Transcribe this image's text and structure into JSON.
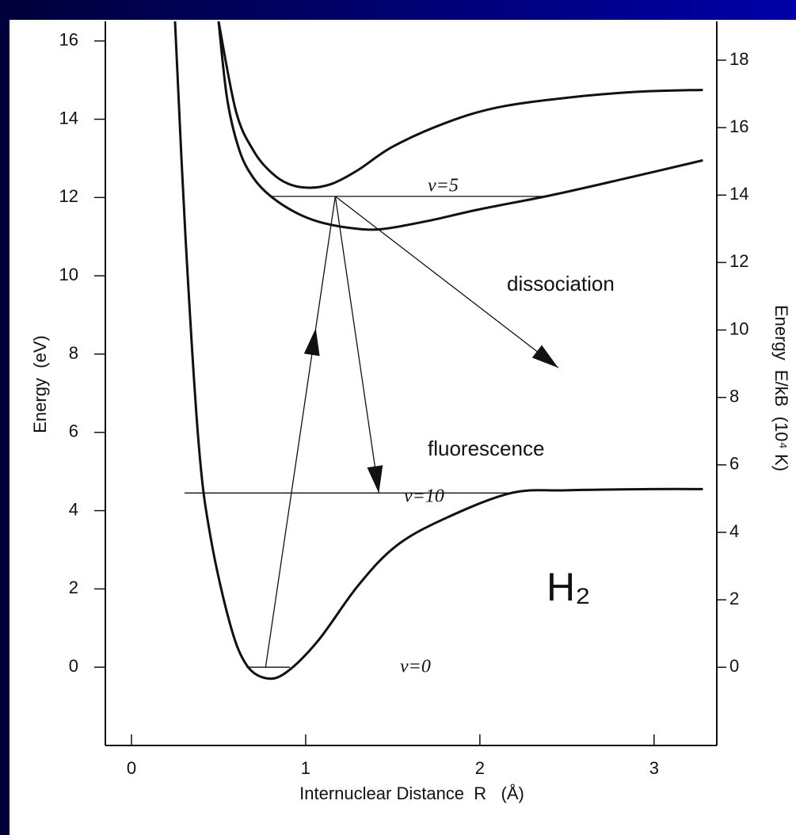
{
  "chart_data": {
    "type": "line",
    "xlabel": "Internuclear Distance  R   (Å)",
    "ylabel": "Energy  (eV)",
    "y2label": "Energy  E/kB  (10⁴ K)",
    "xlim": [
      -0.15,
      3.36
    ],
    "xticks": [
      0,
      1,
      2,
      3
    ],
    "ylim": [
      -2,
      16.5
    ],
    "yticks": [
      0,
      2,
      4,
      6,
      8,
      10,
      12,
      14,
      16
    ],
    "y2lim": [
      -2.32,
      19.15
    ],
    "y2ticks": [
      0,
      2,
      4,
      6,
      8,
      10,
      12,
      14,
      16,
      18
    ],
    "color": "#111111",
    "series": [
      {
        "style": "curve",
        "x": [
          0.25,
          0.31,
          0.386,
          0.455,
          0.568,
          0.66,
          0.77,
          0.886,
          1.07,
          1.3,
          1.52,
          1.8,
          2.18,
          2.5,
          3.0,
          3.28
        ],
        "values": [
          16.5,
          11,
          5.7,
          3.3,
          1.07,
          0.06,
          -0.28,
          -0.14,
          0.67,
          2.08,
          3.1,
          3.8,
          4.45,
          4.52,
          4.55,
          4.55
        ]
      },
      {
        "style": "curve",
        "x": [
          0.5,
          0.55,
          0.62,
          0.7,
          0.8,
          0.95,
          1.1,
          1.3,
          1.45,
          1.7,
          2.0,
          2.4,
          2.8,
          3.28
        ],
        "values": [
          16.5,
          14.5,
          13.2,
          12.5,
          12.03,
          11.6,
          11.35,
          11.2,
          11.2,
          11.4,
          11.7,
          12.05,
          12.45,
          12.95
        ]
      },
      {
        "style": "curve",
        "x": [
          0.5,
          0.6,
          0.7,
          0.8,
          0.9,
          1.02,
          1.15,
          1.3,
          1.5,
          1.8,
          2.1,
          2.5,
          2.9,
          3.28
        ],
        "values": [
          16.5,
          14.2,
          13.2,
          12.65,
          12.35,
          12.25,
          12.35,
          12.7,
          13.3,
          13.9,
          14.3,
          14.55,
          14.7,
          14.75
        ]
      },
      {
        "style": "level",
        "x": [
          0.8,
          2.38
        ],
        "values": [
          12.03,
          12.03
        ]
      },
      {
        "style": "level",
        "x": [
          0.305,
          2.18
        ],
        "values": [
          4.45,
          4.45
        ]
      },
      {
        "style": "level",
        "x": [
          0.66,
          0.91
        ],
        "values": [
          0,
          0
        ]
      },
      {
        "style": "arrow",
        "head": "mid",
        "x": [
          0.77,
          1.17
        ],
        "values": [
          0,
          12.03
        ]
      },
      {
        "style": "arrow",
        "head": "end",
        "x": [
          1.17,
          1.42
        ],
        "values": [
          12.03,
          4.45
        ]
      },
      {
        "style": "arrow",
        "head": "end",
        "x": [
          1.17,
          2.45
        ],
        "values": [
          12.03,
          7.65
        ]
      }
    ],
    "annotations": [
      "v=5",
      "v=10",
      "v=0",
      "dissociation",
      "fluorescence",
      "H₂"
    ]
  }
}
